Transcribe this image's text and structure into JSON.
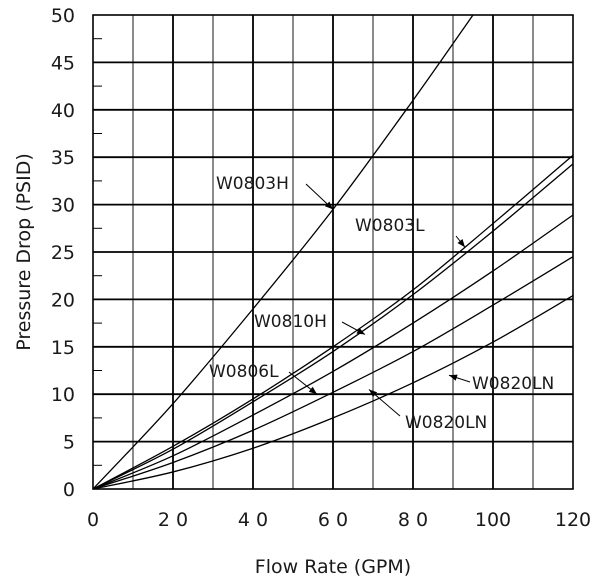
{
  "chart_data": {
    "type": "line",
    "title": "",
    "xlabel": "Flow Rate (GPM)",
    "ylabel": "Pressure Drop (PSID)",
    "xlim": [
      0,
      120
    ],
    "ylim": [
      0,
      50
    ],
    "x_ticks": [
      "0",
      "2 0",
      "4 0",
      "6 0",
      "8 0",
      "100",
      "120"
    ],
    "y_ticks": [
      "0",
      "5",
      "10",
      "15",
      "20",
      "25",
      "30",
      "35",
      "40",
      "45",
      "50"
    ],
    "grid": true,
    "series": [
      {
        "name": "W0803H",
        "x": [
          0,
          20,
          40,
          60,
          80,
          95
        ],
        "y": [
          0,
          9,
          19,
          29.5,
          41,
          50
        ]
      },
      {
        "name": "W0803L",
        "x": [
          0,
          20,
          40,
          60,
          80,
          100,
          120
        ],
        "y": [
          0,
          4.5,
          9.5,
          15,
          21,
          28,
          35.2
        ]
      },
      {
        "name": "W0810H",
        "x": [
          0,
          20,
          40,
          60,
          80,
          100,
          120
        ],
        "y": [
          0,
          4.2,
          9.2,
          14.5,
          20.5,
          27.2,
          34.3
        ]
      },
      {
        "name": "W0806L",
        "x": [
          0,
          20,
          40,
          60,
          80,
          100,
          120
        ],
        "y": [
          0,
          3.5,
          7.8,
          12.4,
          17.5,
          23,
          28.9
        ]
      },
      {
        "name": "W0820LN",
        "x": [
          0,
          20,
          40,
          60,
          80,
          100,
          120
        ],
        "y": [
          0,
          2.8,
          6.2,
          10.2,
          14.5,
          19.4,
          24.5
        ]
      },
      {
        "name": "W0820LN",
        "x": [
          0,
          20,
          40,
          60,
          80,
          100,
          120
        ],
        "y": [
          0,
          1.8,
          4.3,
          7.5,
          11.2,
          15.5,
          20.4
        ]
      }
    ],
    "annotations": [
      {
        "text": "W0803H",
        "points_to": [
          60,
          29.5
        ]
      },
      {
        "text": "W0803L",
        "points_to": [
          93,
          25.5
        ]
      },
      {
        "text": "W0810H",
        "points_to": [
          68,
          16.3
        ]
      },
      {
        "text": "W0806L",
        "points_to": [
          56,
          10
        ]
      },
      {
        "text": "W0820LN",
        "points_to": [
          89,
          12
        ]
      },
      {
        "text": "W0820LN",
        "points_to": [
          69,
          10.5
        ]
      }
    ]
  }
}
